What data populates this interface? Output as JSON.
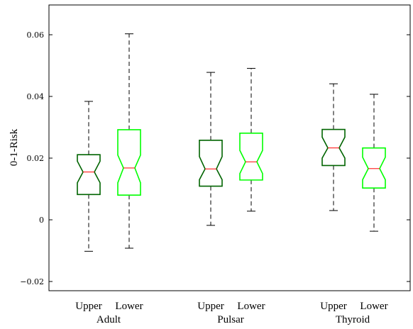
{
  "chart_data": {
    "type": "boxplot",
    "ylabel": "0-1-Risk",
    "ylim": [
      -0.025,
      0.07
    ],
    "yticks": [
      {
        "value": -0.02,
        "label": "−0.02"
      },
      {
        "value": 0,
        "label": "0"
      },
      {
        "value": 0.02,
        "label": "0.02"
      },
      {
        "value": 0.04,
        "label": "0.04"
      },
      {
        "value": 0.06,
        "label": "0.06"
      }
    ],
    "box_style": "notched",
    "median_color": "#ff0000",
    "groups": [
      {
        "name": "Adult",
        "boxes": [
          {
            "label": "Upper",
            "color": "#006400",
            "whisker_low": -0.0102,
            "q1": 0.0082,
            "median": 0.0155,
            "q3": 0.0211,
            "whisker_high": 0.0384,
            "notch_low": 0.012,
            "notch_high": 0.019
          },
          {
            "label": "Lower",
            "color": "#00ff00",
            "whisker_low": -0.0092,
            "q1": 0.008,
            "median": 0.0168,
            "q3": 0.0292,
            "whisker_high": 0.0603,
            "notch_low": 0.012,
            "notch_high": 0.021
          }
        ]
      },
      {
        "name": "Pulsar",
        "boxes": [
          {
            "label": "Upper",
            "color": "#006400",
            "whisker_low": -0.0018,
            "q1": 0.0109,
            "median": 0.0165,
            "q3": 0.0258,
            "whisker_high": 0.0478,
            "notch_low": 0.013,
            "notch_high": 0.0205
          },
          {
            "label": "Lower",
            "color": "#00ff00",
            "whisker_low": 0.0028,
            "q1": 0.0129,
            "median": 0.0188,
            "q3": 0.0281,
            "whisker_high": 0.0491,
            "notch_low": 0.015,
            "notch_high": 0.0225
          }
        ]
      },
      {
        "name": "Thyroid",
        "boxes": [
          {
            "label": "Upper",
            "color": "#006400",
            "whisker_low": 0.003,
            "q1": 0.0176,
            "median": 0.0233,
            "q3": 0.0293,
            "whisker_high": 0.0441,
            "notch_low": 0.02,
            "notch_high": 0.0268
          },
          {
            "label": "Lower",
            "color": "#00ff00",
            "whisker_low": -0.0037,
            "q1": 0.0103,
            "median": 0.0166,
            "q3": 0.0233,
            "whisker_high": 0.0407,
            "notch_low": 0.013,
            "notch_high": 0.0203
          }
        ]
      }
    ]
  }
}
